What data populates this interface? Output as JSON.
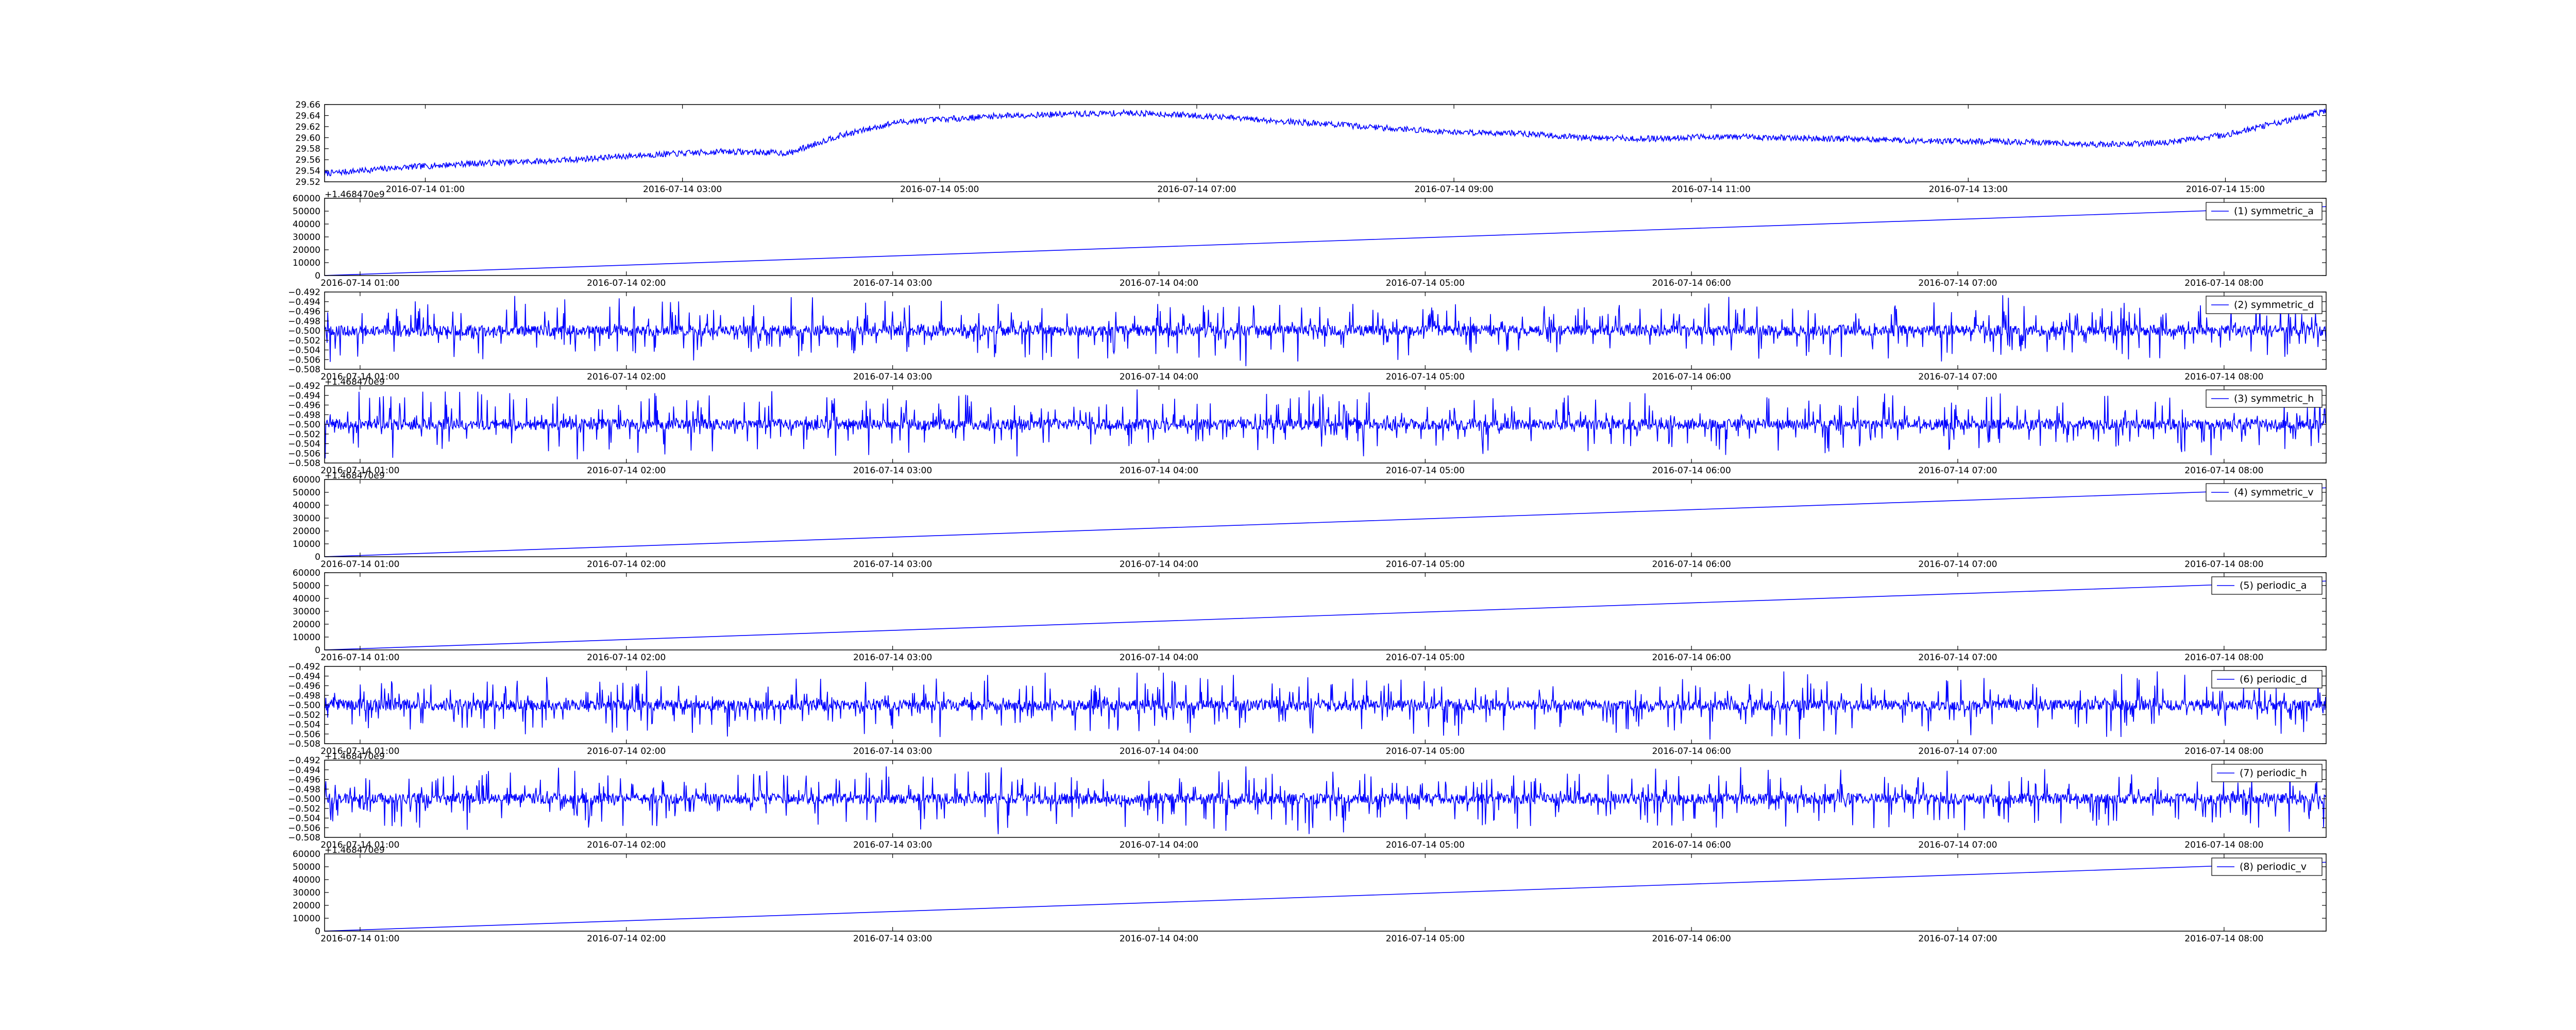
{
  "chart_data": [
    {
      "type": "line",
      "x_tick_labels": [
        "2016-07-14 01:00",
        "2016-07-14 03:00",
        "2016-07-14 05:00",
        "2016-07-14 07:00",
        "2016-07-14 09:00",
        "2016-07-14 11:00",
        "2016-07-14 13:00",
        "2016-07-14 15:00"
      ],
      "x_range": [
        "2016-07-14 00:13",
        "2016-07-14 15:47"
      ],
      "ylim": [
        29.52,
        29.66
      ],
      "y_ticks": [
        "29.52",
        "29.54",
        "29.56",
        "29.58",
        "29.60",
        "29.62",
        "29.64",
        "29.66"
      ],
      "series": [
        {
          "color": "#0000ff",
          "anchors": [
            [
              "00:13",
              29.535
            ],
            [
              "00:45",
              29.545
            ],
            [
              "01:20",
              29.553
            ],
            [
              "02:00",
              29.558
            ],
            [
              "02:40",
              29.568
            ],
            [
              "03:20",
              29.575
            ],
            [
              "03:50",
              29.572
            ],
            [
              "04:10",
              29.6
            ],
            [
              "04:40",
              29.628
            ],
            [
              "05:30",
              29.64
            ],
            [
              "06:30",
              29.645
            ],
            [
              "07:00",
              29.64
            ],
            [
              "07:30",
              29.632
            ],
            [
              "08:00",
              29.625
            ],
            [
              "08:30",
              29.617
            ],
            [
              "09:00",
              29.61
            ],
            [
              "09:30",
              29.608
            ],
            [
              "10:00",
              29.6
            ],
            [
              "10:30",
              29.598
            ],
            [
              "11:00",
              29.602
            ],
            [
              "11:30",
              29.6
            ],
            [
              "12:00",
              29.598
            ],
            [
              "12:30",
              29.595
            ],
            [
              "13:00",
              29.593
            ],
            [
              "13:30",
              29.592
            ],
            [
              "14:00",
              29.588
            ],
            [
              "14:30",
              29.59
            ],
            [
              "15:00",
              29.605
            ],
            [
              "15:47",
              29.648
            ]
          ]
        }
      ]
    },
    {
      "type": "line",
      "x_tick_labels": [
        "2016-07-14 01:00",
        "2016-07-14 02:00",
        "2016-07-14 03:00",
        "2016-07-14 04:00",
        "2016-07-14 05:00",
        "2016-07-14 06:00",
        "2016-07-14 07:00",
        "2016-07-14 08:00"
      ],
      "x_range": [
        "2016-07-14 00:52",
        "2016-07-14 08:23"
      ],
      "offset_label": "+1.468470e9",
      "ylim": [
        0,
        60000
      ],
      "y_ticks": [
        "0",
        "10000",
        "20000",
        "30000",
        "40000",
        "50000",
        "60000"
      ],
      "series": [
        {
          "name": "(1) symmetric_a",
          "color": "#0000ff",
          "kind": "ramp",
          "values": [
            0,
            53500
          ]
        }
      ]
    },
    {
      "type": "line",
      "x_tick_labels": [
        "2016-07-14 01:00",
        "2016-07-14 02:00",
        "2016-07-14 03:00",
        "2016-07-14 04:00",
        "2016-07-14 05:00",
        "2016-07-14 06:00",
        "2016-07-14 07:00",
        "2016-07-14 08:00"
      ],
      "x_range": [
        "2016-07-14 00:52",
        "2016-07-14 08:23"
      ],
      "ylim": [
        -0.508,
        -0.492
      ],
      "y_ticks": [
        "−0.508",
        "−0.506",
        "−0.504",
        "−0.502",
        "−0.500",
        "−0.498",
        "−0.496",
        "−0.494",
        "−0.492"
      ],
      "series": [
        {
          "name": "(2) symmetric_d",
          "color": "#0000ff",
          "kind": "noise",
          "center": -0.5,
          "amplitude": 0.0075
        }
      ]
    },
    {
      "type": "line",
      "x_tick_labels": [
        "2016-07-14 01:00",
        "2016-07-14 02:00",
        "2016-07-14 03:00",
        "2016-07-14 04:00",
        "2016-07-14 05:00",
        "2016-07-14 06:00",
        "2016-07-14 07:00",
        "2016-07-14 08:00"
      ],
      "x_range": [
        "2016-07-14 00:52",
        "2016-07-14 08:23"
      ],
      "offset_label": "+1.468470e9",
      "ylim": [
        -0.508,
        -0.492
      ],
      "y_ticks": [
        "−0.508",
        "−0.506",
        "−0.504",
        "−0.502",
        "−0.500",
        "−0.498",
        "−0.496",
        "−0.494",
        "−0.492"
      ],
      "series": [
        {
          "name": "(3) symmetric_h",
          "color": "#0000ff",
          "kind": "noise",
          "center": -0.5,
          "amplitude": 0.0075
        }
      ]
    },
    {
      "type": "line",
      "x_tick_labels": [
        "2016-07-14 01:00",
        "2016-07-14 02:00",
        "2016-07-14 03:00",
        "2016-07-14 04:00",
        "2016-07-14 05:00",
        "2016-07-14 06:00",
        "2016-07-14 07:00",
        "2016-07-14 08:00"
      ],
      "x_range": [
        "2016-07-14 00:52",
        "2016-07-14 08:23"
      ],
      "offset_label": "+1.468470e9",
      "ylim": [
        0,
        60000
      ],
      "y_ticks": [
        "0",
        "10000",
        "20000",
        "30000",
        "40000",
        "50000",
        "60000"
      ],
      "series": [
        {
          "name": "(4) symmetric_v",
          "color": "#0000ff",
          "kind": "ramp",
          "values": [
            0,
            53500
          ]
        }
      ]
    },
    {
      "type": "line",
      "x_tick_labels": [
        "2016-07-14 01:00",
        "2016-07-14 02:00",
        "2016-07-14 03:00",
        "2016-07-14 04:00",
        "2016-07-14 05:00",
        "2016-07-14 06:00",
        "2016-07-14 07:00",
        "2016-07-14 08:00"
      ],
      "x_range": [
        "2016-07-14 00:52",
        "2016-07-14 08:23"
      ],
      "ylim": [
        0,
        60000
      ],
      "y_ticks": [
        "0",
        "10000",
        "20000",
        "30000",
        "40000",
        "50000",
        "60000"
      ],
      "series": [
        {
          "name": "(5) periodic_a",
          "color": "#0000ff",
          "kind": "ramp",
          "values": [
            0,
            53500
          ]
        }
      ]
    },
    {
      "type": "line",
      "x_tick_labels": [
        "2016-07-14 01:00",
        "2016-07-14 02:00",
        "2016-07-14 03:00",
        "2016-07-14 04:00",
        "2016-07-14 05:00",
        "2016-07-14 06:00",
        "2016-07-14 07:00",
        "2016-07-14 08:00"
      ],
      "x_range": [
        "2016-07-14 00:52",
        "2016-07-14 08:23"
      ],
      "ylim": [
        -0.508,
        -0.492
      ],
      "y_ticks": [
        "−0.508",
        "−0.506",
        "−0.504",
        "−0.502",
        "−0.500",
        "−0.498",
        "−0.496",
        "−0.494",
        "−0.492"
      ],
      "series": [
        {
          "name": "(6) periodic_d",
          "color": "#0000ff",
          "kind": "noise",
          "center": -0.5,
          "amplitude": 0.0075
        }
      ]
    },
    {
      "type": "line",
      "x_tick_labels": [
        "2016-07-14 01:00",
        "2016-07-14 02:00",
        "2016-07-14 03:00",
        "2016-07-14 04:00",
        "2016-07-14 05:00",
        "2016-07-14 06:00",
        "2016-07-14 07:00",
        "2016-07-14 08:00"
      ],
      "x_range": [
        "2016-07-14 00:52",
        "2016-07-14 08:23"
      ],
      "offset_label": "+1.468470e9",
      "ylim": [
        -0.508,
        -0.492
      ],
      "y_ticks": [
        "−0.508",
        "−0.506",
        "−0.504",
        "−0.502",
        "−0.500",
        "−0.498",
        "−0.496",
        "−0.494",
        "−0.492"
      ],
      "series": [
        {
          "name": "(7) periodic_h",
          "color": "#0000ff",
          "kind": "noise",
          "center": -0.5,
          "amplitude": 0.0075
        }
      ]
    },
    {
      "type": "line",
      "x_tick_labels": [
        "2016-07-14 01:00",
        "2016-07-14 02:00",
        "2016-07-14 03:00",
        "2016-07-14 04:00",
        "2016-07-14 05:00",
        "2016-07-14 06:00",
        "2016-07-14 07:00",
        "2016-07-14 08:00"
      ],
      "x_range": [
        "2016-07-14 00:52",
        "2016-07-14 08:23"
      ],
      "offset_label": "+1.468470e9",
      "ylim": [
        0,
        60000
      ],
      "y_ticks": [
        "0",
        "10000",
        "20000",
        "30000",
        "40000",
        "50000",
        "60000"
      ],
      "series": [
        {
          "name": "(8) periodic_v",
          "color": "#0000ff",
          "kind": "ramp",
          "values": [
            0,
            53500
          ]
        }
      ]
    }
  ]
}
